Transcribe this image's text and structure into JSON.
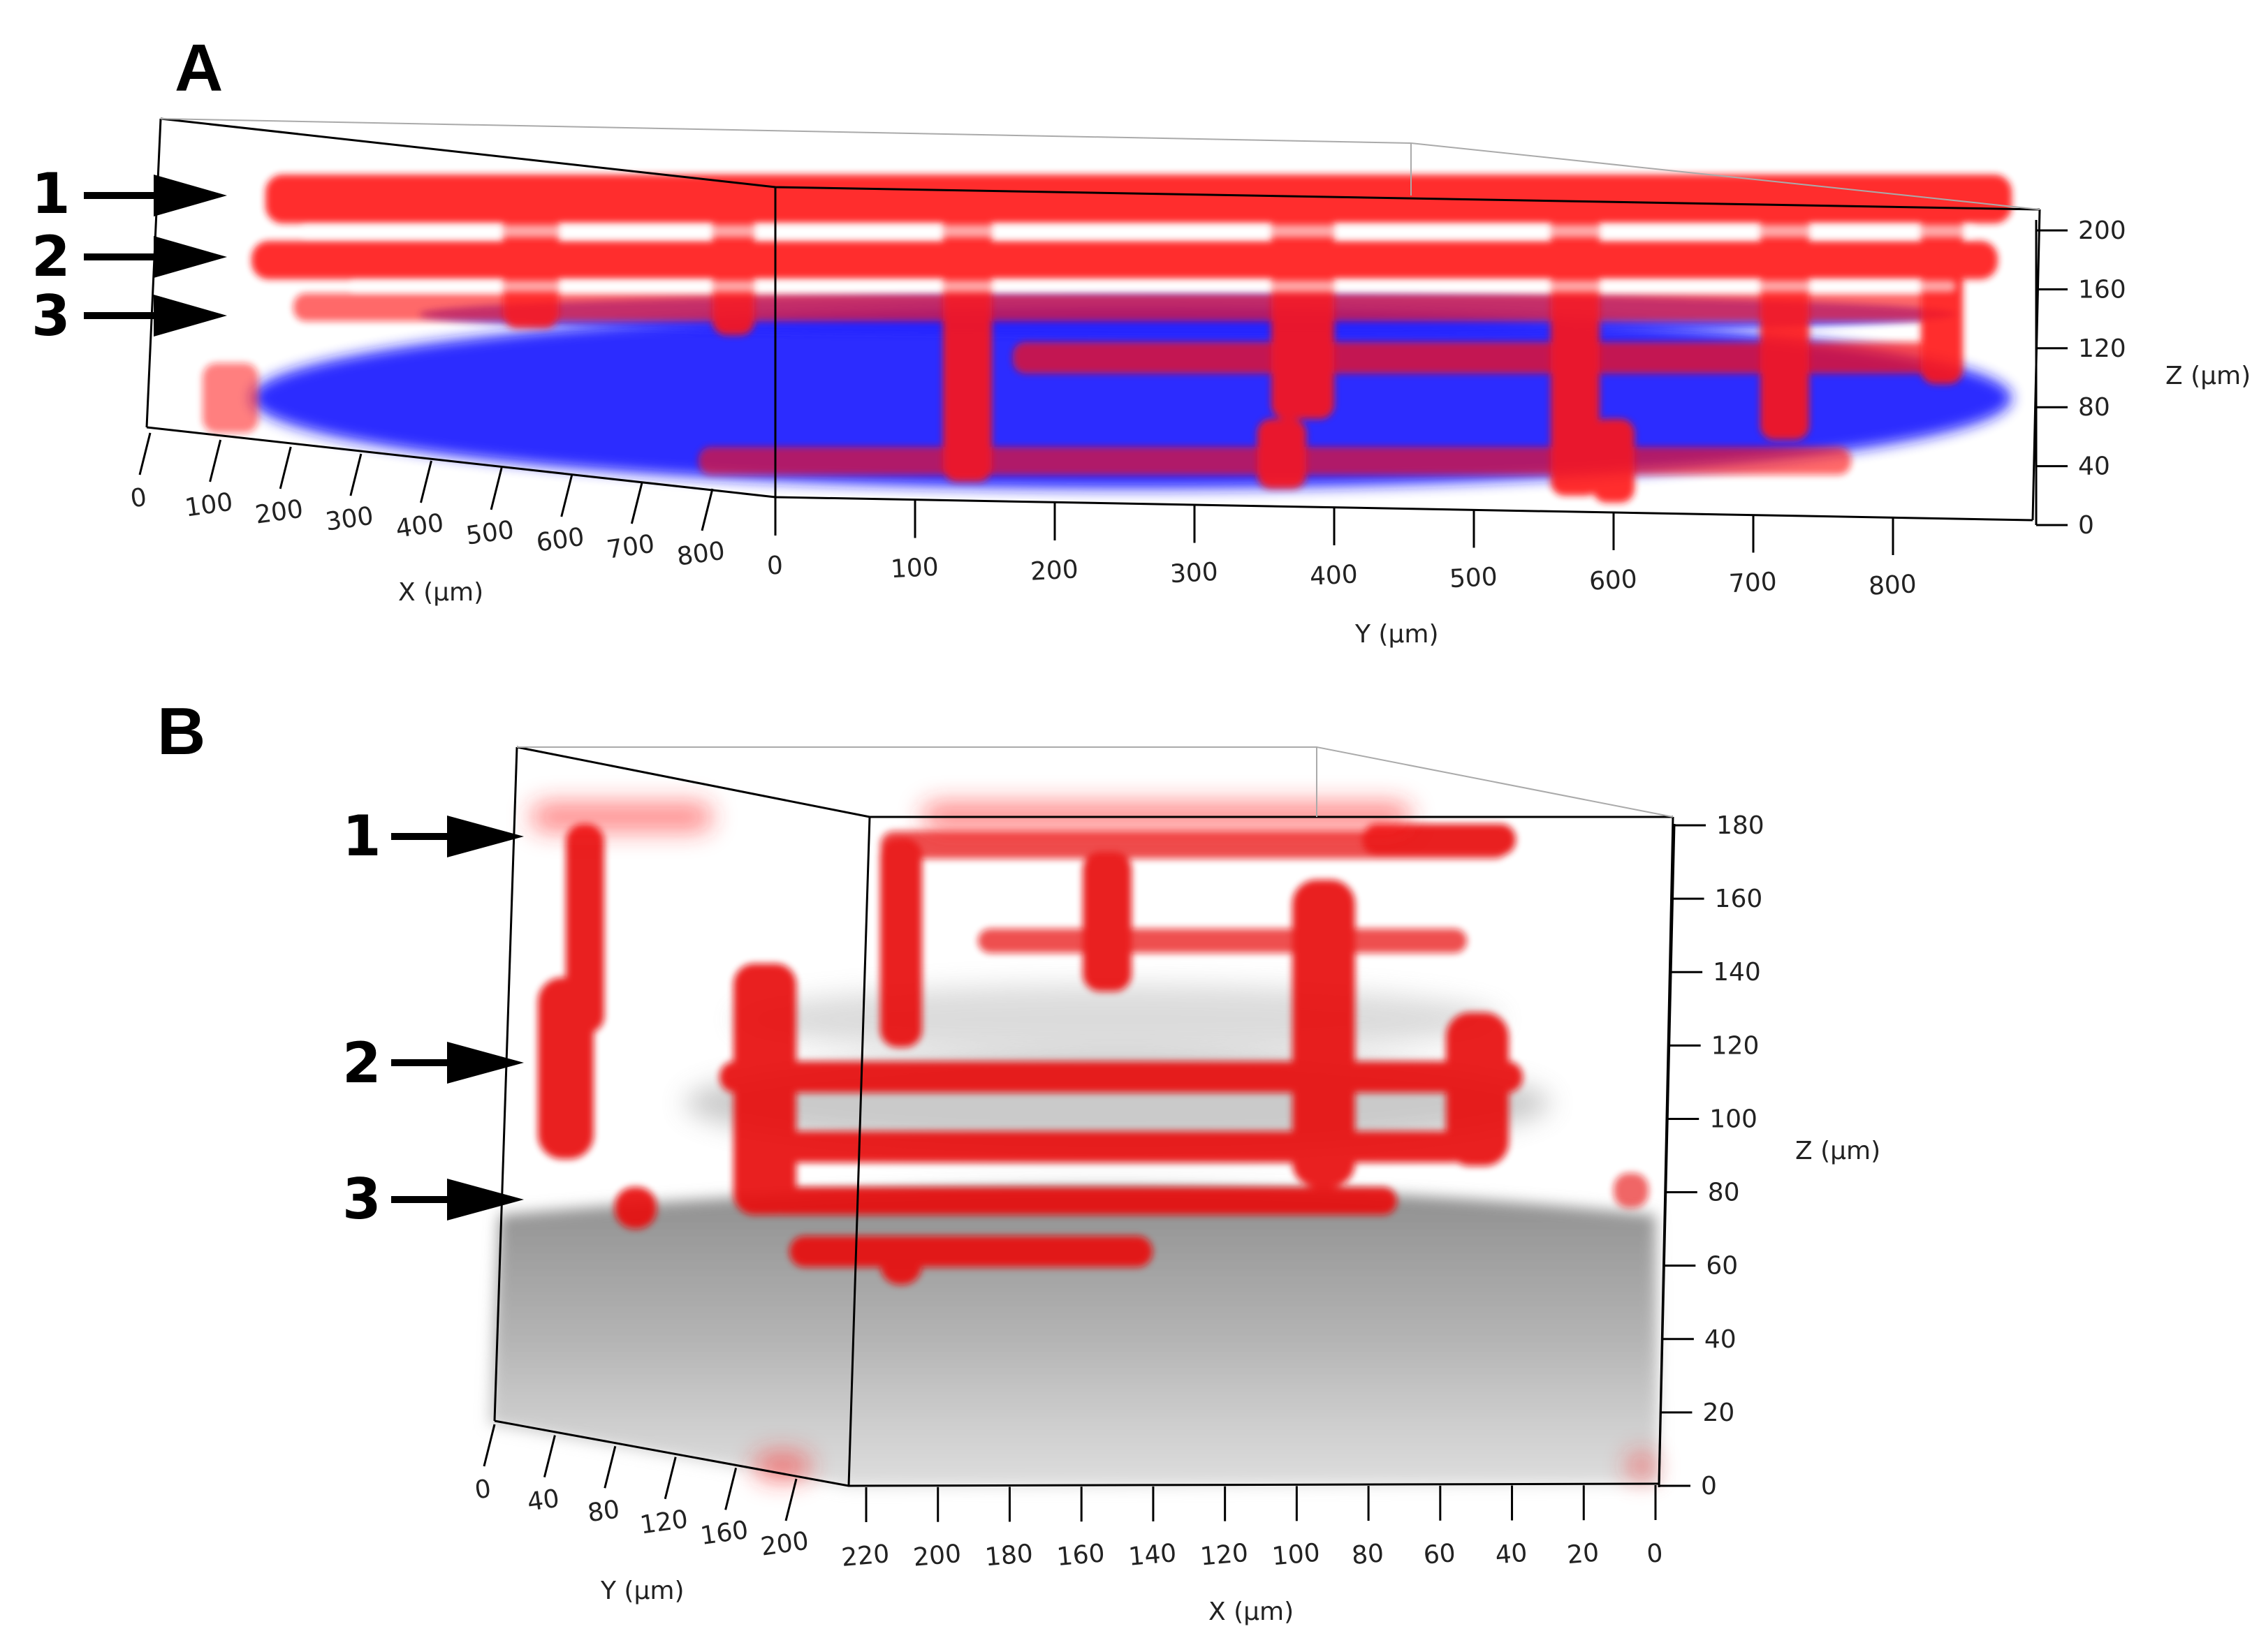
{
  "panels": [
    {
      "label": "A",
      "arrows": [
        "1",
        "2",
        "3"
      ],
      "z_axis": {
        "title": "Z (µm)",
        "ticks": [
          "200",
          "160",
          "120",
          "80",
          "40",
          "0"
        ]
      },
      "x_axis": {
        "title": "X (µm)",
        "ticks": [
          "0",
          "100",
          "200",
          "300",
          "400",
          "500",
          "600",
          "700",
          "800"
        ]
      },
      "y_axis": {
        "title": "Y (µm)",
        "ticks": [
          "0",
          "100",
          "200",
          "300",
          "400",
          "500",
          "600",
          "700",
          "800"
        ]
      },
      "colors": {
        "fibers": "#ff1a1a",
        "cells": "#1a1aff"
      }
    },
    {
      "label": "B",
      "arrows": [
        "1",
        "2",
        "3"
      ],
      "z_axis": {
        "title": "Z (µm)",
        "ticks": [
          "180",
          "160",
          "140",
          "120",
          "100",
          "80",
          "60",
          "40",
          "20",
          "0"
        ]
      },
      "y_axis": {
        "title": "Y (µm)",
        "ticks": [
          "0",
          "40",
          "80",
          "120",
          "160",
          "200"
        ]
      },
      "x_axis": {
        "title": "X (µm)",
        "ticks": [
          "220",
          "200",
          "180",
          "160",
          "140",
          "120",
          "100",
          "80",
          "60",
          "40",
          "20",
          "0"
        ]
      },
      "colors": {
        "fibers": "#ff1a1a",
        "cells": "#8a8a8a"
      }
    }
  ]
}
